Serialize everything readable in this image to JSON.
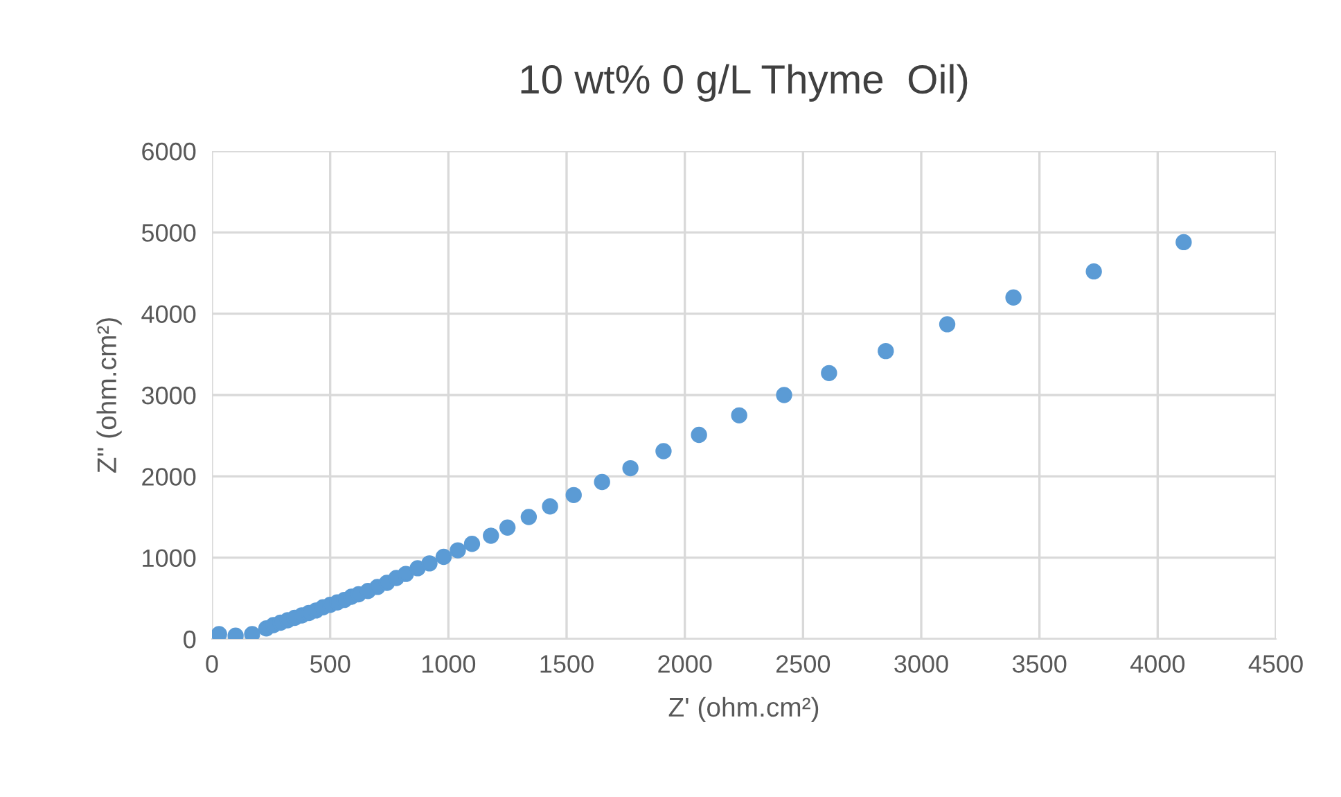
{
  "chart_data": {
    "type": "scatter",
    "title": "10 wt% 0 g/L Thyme  Oil)",
    "xlabel": "Z' (ohm.cm²)",
    "ylabel": "Z'' (ohm.cm²)",
    "series": [
      {
        "color": "#5b9bd5",
        "x": [
          30,
          100,
          170,
          230,
          260,
          290,
          320,
          350,
          380,
          410,
          440,
          470,
          500,
          530,
          560,
          590,
          620,
          660,
          700,
          740,
          780,
          820,
          870,
          920,
          980,
          1040,
          1100,
          1180,
          1250,
          1340,
          1430,
          1530,
          1650,
          1770,
          1910,
          2060,
          2230,
          2420,
          2610,
          2850,
          3110,
          3390,
          3730,
          4110
        ],
        "values": [
          60,
          40,
          60,
          130,
          170,
          200,
          230,
          260,
          290,
          320,
          350,
          390,
          420,
          450,
          480,
          520,
          550,
          590,
          640,
          690,
          750,
          800,
          870,
          930,
          1010,
          1090,
          1170,
          1270,
          1370,
          1500,
          1630,
          1770,
          1930,
          2100,
          2310,
          2510,
          2750,
          3000,
          3270,
          3540,
          3870,
          4200,
          4520,
          4880
        ]
      }
    ],
    "xlim": [
      0,
      4500
    ],
    "xticks": [
      0,
      500,
      1000,
      1500,
      2000,
      2500,
      3000,
      3500,
      4000,
      4500
    ],
    "ylim": [
      0,
      6000
    ],
    "yticks": [
      0,
      1000,
      2000,
      3000,
      4000,
      5000,
      6000
    ],
    "grid": true,
    "marker": "circle",
    "legend": false
  }
}
